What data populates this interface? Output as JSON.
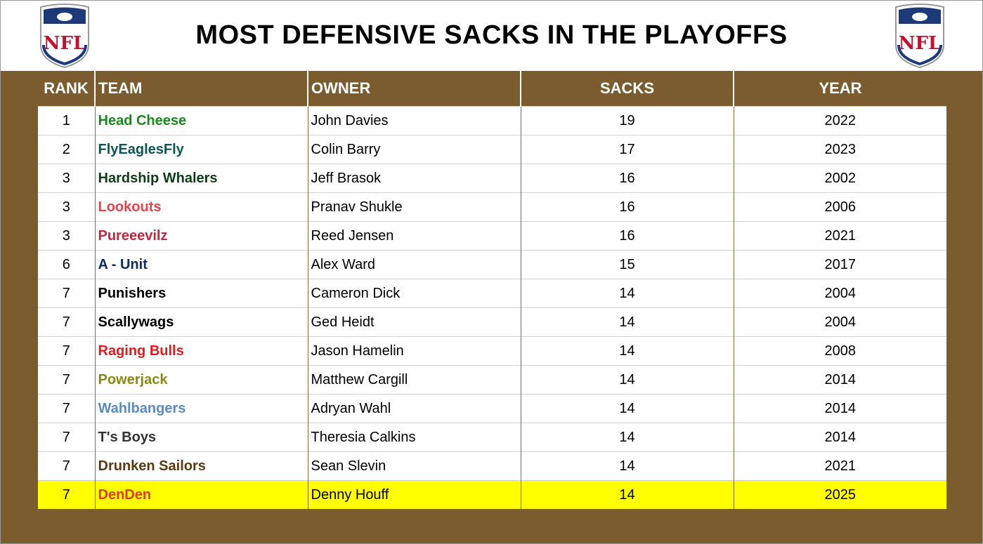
{
  "header": {
    "title": "MOST DEFENSIVE SACKS IN THE PLAYOFFS"
  },
  "table": {
    "columns": [
      "RANK",
      "TEAM",
      "OWNER",
      "SACKS",
      "YEAR"
    ],
    "highlight_row": 13,
    "rows": [
      {
        "rank": 1,
        "team": "Head Cheese",
        "team_color": "#1a8a1a",
        "owner": "John Davies",
        "sacks": 19,
        "year": 2022
      },
      {
        "rank": 2,
        "team": "FlyEaglesFly",
        "team_color": "#0b5559",
        "owner": "Colin Barry",
        "sacks": 17,
        "year": 2023
      },
      {
        "rank": 3,
        "team": "Hardship Whalers",
        "team_color": "#0f3d17",
        "owner": "Jeff Brasok",
        "sacks": 16,
        "year": 2002
      },
      {
        "rank": 3,
        "team": "Lookouts",
        "team_color": "#e8424a",
        "owner": "Pranav Shukle",
        "sacks": 16,
        "year": 2006
      },
      {
        "rank": 3,
        "team": "Pureeevilz",
        "team_color": "#c0283e",
        "owner": "Reed Jensen",
        "sacks": 16,
        "year": 2021
      },
      {
        "rank": 6,
        "team": "A - Unit",
        "team_color": "#0b2a66",
        "owner": "Alex Ward",
        "sacks": 15,
        "year": 2017
      },
      {
        "rank": 7,
        "team": "Punishers",
        "team_color": "#000000",
        "owner": "Cameron Dick",
        "sacks": 14,
        "year": 2004
      },
      {
        "rank": 7,
        "team": "Scallywags",
        "team_color": "#000000",
        "owner": "Ged Heidt",
        "sacks": 14,
        "year": 2004
      },
      {
        "rank": 7,
        "team": "Raging Bulls",
        "team_color": "#e51a1a",
        "owner": "Jason Hamelin",
        "sacks": 14,
        "year": 2008
      },
      {
        "rank": 7,
        "team": "Powerjack",
        "team_color": "#8a8a10",
        "owner": "Matthew Cargill",
        "sacks": 14,
        "year": 2014
      },
      {
        "rank": 7,
        "team": "Wahlbangers",
        "team_color": "#5a8cc4",
        "owner": "Adryan Wahl",
        "sacks": 14,
        "year": 2014
      },
      {
        "rank": 7,
        "team": "T's Boys",
        "team_color": "#333333",
        "owner": "Theresia Calkins",
        "sacks": 14,
        "year": 2014
      },
      {
        "rank": 7,
        "team": "Drunken Sailors",
        "team_color": "#5a3a10",
        "owner": "Sean Slevin",
        "sacks": 14,
        "year": 2021
      },
      {
        "rank": 7,
        "team": "DenDen",
        "team_color": "#e53a1a",
        "owner": "Denny Houff",
        "sacks": 14,
        "year": 2025
      }
    ]
  }
}
